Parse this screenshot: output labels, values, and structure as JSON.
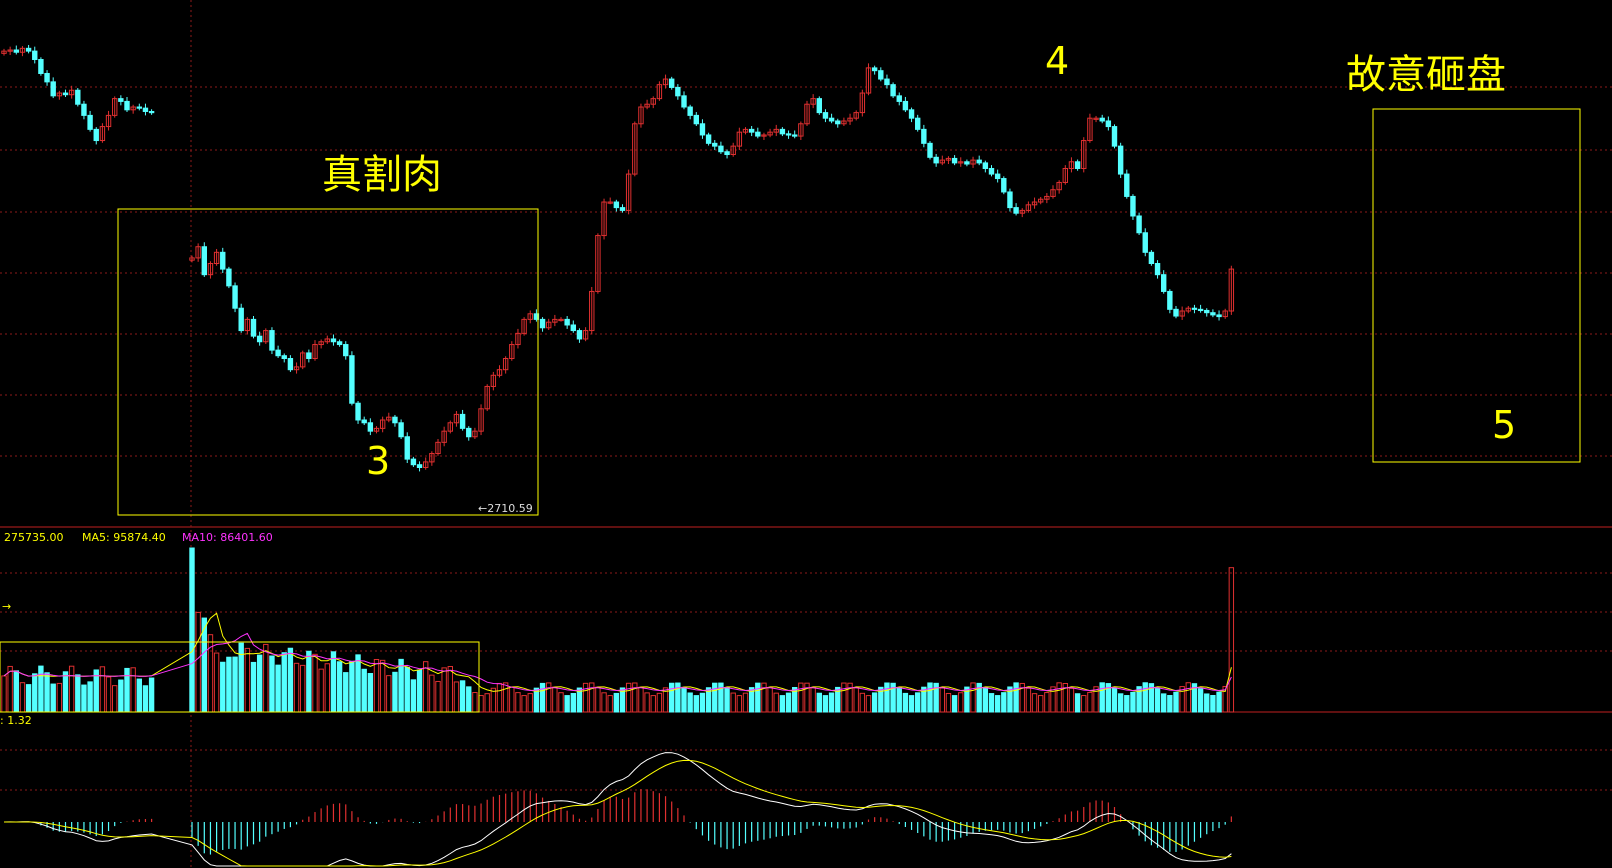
{
  "colors": {
    "background": "#000000",
    "up": "#e03030",
    "down": "#54ffff",
    "grid": "#8b1a1a",
    "box": "#ffff00",
    "ma5": "#ffff00",
    "ma10": "#ff33ff",
    "dif": "#ffffff",
    "dea": "#ffff00"
  },
  "annotations": {
    "zhen_ge_rou": "真割肉",
    "gu_yi_za_pan": "故意砸盘",
    "n3": "3",
    "n4": "4",
    "n5": "5"
  },
  "price_panel": {
    "low_label": "2710.59"
  },
  "volume_panel": {
    "vol_label": "275735.00",
    "ma5_label": "MA5: 95874.40",
    "ma10_label": "MA10: 86401.60"
  },
  "macd_panel": {
    "label": ": 1.32"
  },
  "chart_data": {
    "type": "candlestick",
    "price_axis": {
      "min": 2680,
      "max": 3580,
      "labels_shown": false
    },
    "low_marker": 2710.59,
    "segments": [
      {
        "closes": [
          3510,
          3512,
          3508,
          3515,
          3510,
          3495,
          3470,
          3455,
          3430,
          3435,
          3432,
          3440,
          3415,
          3395,
          3370,
          3350,
          3375,
          3395,
          3425,
          3420,
          3405,
          3410,
          3408,
          3402,
          3400
        ]
      },
      {
        "gap_after_index": 24,
        "gap_candles": 1
      },
      {
        "closes": [
          3140,
          3160,
          3110,
          3130,
          3150,
          3120,
          3090,
          3050,
          3010,
          3030,
          3000,
          2990,
          3010,
          2975,
          2965,
          2960,
          2940,
          2945,
          2970,
          2960,
          2985,
          2990,
          2995,
          2990,
          2985,
          2965,
          2880,
          2850,
          2845,
          2830,
          2835,
          2850,
          2855,
          2845,
          2820,
          2780,
          2770,
          2765,
          2775,
          2790,
          2810,
          2830,
          2845,
          2860,
          2835,
          2820,
          2830,
          2870,
          2910,
          2930,
          2940,
          2960,
          2985,
          3005,
          3030,
          3040,
          3030,
          3015,
          3025,
          3030,
          3030,
          3020,
          3010,
          2995,
          3010,
          3080,
          3180,
          3240,
          3240,
          3230,
          3225,
          3290,
          3380,
          3410,
          3415,
          3425,
          3450,
          3460,
          3445,
          3430,
          3410,
          3395,
          3380,
          3360,
          3345,
          3340,
          3330,
          3325,
          3340,
          3365,
          3370,
          3365,
          3358,
          3360,
          3365,
          3370,
          3362,
          3360,
          3358,
          3380,
          3415,
          3425,
          3400,
          3390,
          3385,
          3380,
          3385,
          3390,
          3400,
          3435,
          3480,
          3475,
          3460,
          3450,
          3430,
          3420,
          3405,
          3390,
          3370,
          3345,
          3320,
          3310,
          3315,
          3318,
          3310,
          3312,
          3308,
          3315,
          3310,
          3300,
          3290,
          3282,
          3258,
          3230,
          3220,
          3225,
          3235,
          3240,
          3245,
          3250,
          3262,
          3275,
          3300,
          3312,
          3300,
          3350,
          3390,
          3390,
          3385,
          3375,
          3340,
          3290,
          3250,
          3215,
          3185,
          3150,
          3130,
          3110,
          3080,
          3048,
          3036,
          3045,
          3050,
          3048,
          3046,
          3042,
          3038,
          3035,
          3045,
          3120
        ]
      }
    ],
    "volume": {
      "peak_index": 0,
      "labels": [
        "275735.00",
        "MA5: 95874.40",
        "MA10: 86401.60"
      ]
    },
    "macd": {
      "label": ": 1.32"
    }
  }
}
